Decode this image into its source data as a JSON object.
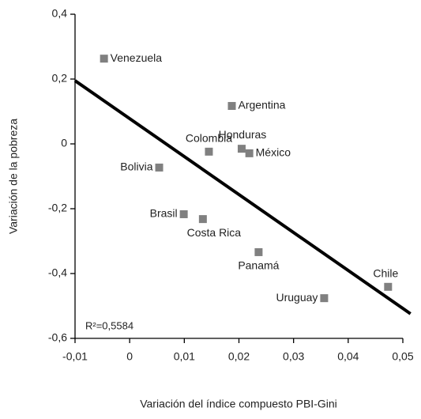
{
  "chart_data": {
    "type": "scatter",
    "x_label": "Variación del índice compuesto PBI-Gini",
    "y_label": "Variación de la pobreza",
    "annotation": "R²=0,5584",
    "series": [
      {
        "color": "#808080",
        "labels": [
          "Venezuela",
          "Argentina",
          "Colombia",
          "Honduras",
          "México",
          "Bolivia",
          "Brasil",
          "Costa Rica",
          "Panamá",
          "Uruguay",
          "Chile"
        ],
        "x": [
          -0.0047,
          0.0187,
          0.0145,
          0.0205,
          0.0219,
          0.0054,
          0.0099,
          0.0134,
          0.0236,
          0.0356,
          0.0473
        ],
        "values": [
          0.263,
          0.117,
          -0.024,
          -0.015,
          -0.029,
          -0.073,
          -0.217,
          -0.232,
          -0.334,
          -0.476,
          -0.441
        ]
      }
    ],
    "trendline": {
      "color": "#000000",
      "x": [
        -0.01,
        0.0514
      ],
      "y": [
        0.195,
        -0.524
      ]
    },
    "xlim": [
      -0.01,
      0.05
    ],
    "ylim": [
      -0.6,
      0.4
    ],
    "xticks": [
      {
        "value": -0.01,
        "label": "-0,01"
      },
      0,
      {
        "value": 0.01,
        "label": "0,01"
      },
      {
        "value": 0.02,
        "label": "0,02"
      },
      {
        "value": 0.03,
        "label": "0,03"
      },
      {
        "value": 0.04,
        "label": "0,04"
      },
      {
        "value": 0.05,
        "label": "0,05"
      }
    ],
    "yticks": [
      {
        "value": -0.6,
        "label": "-0,6"
      },
      {
        "value": -0.4,
        "label": "-0,4"
      },
      {
        "value": -0.2,
        "label": "-0,2"
      },
      0,
      {
        "value": 0.2,
        "label": "0,2"
      },
      {
        "value": 0.4,
        "label": "0,4"
      }
    ],
    "grid": false
  }
}
